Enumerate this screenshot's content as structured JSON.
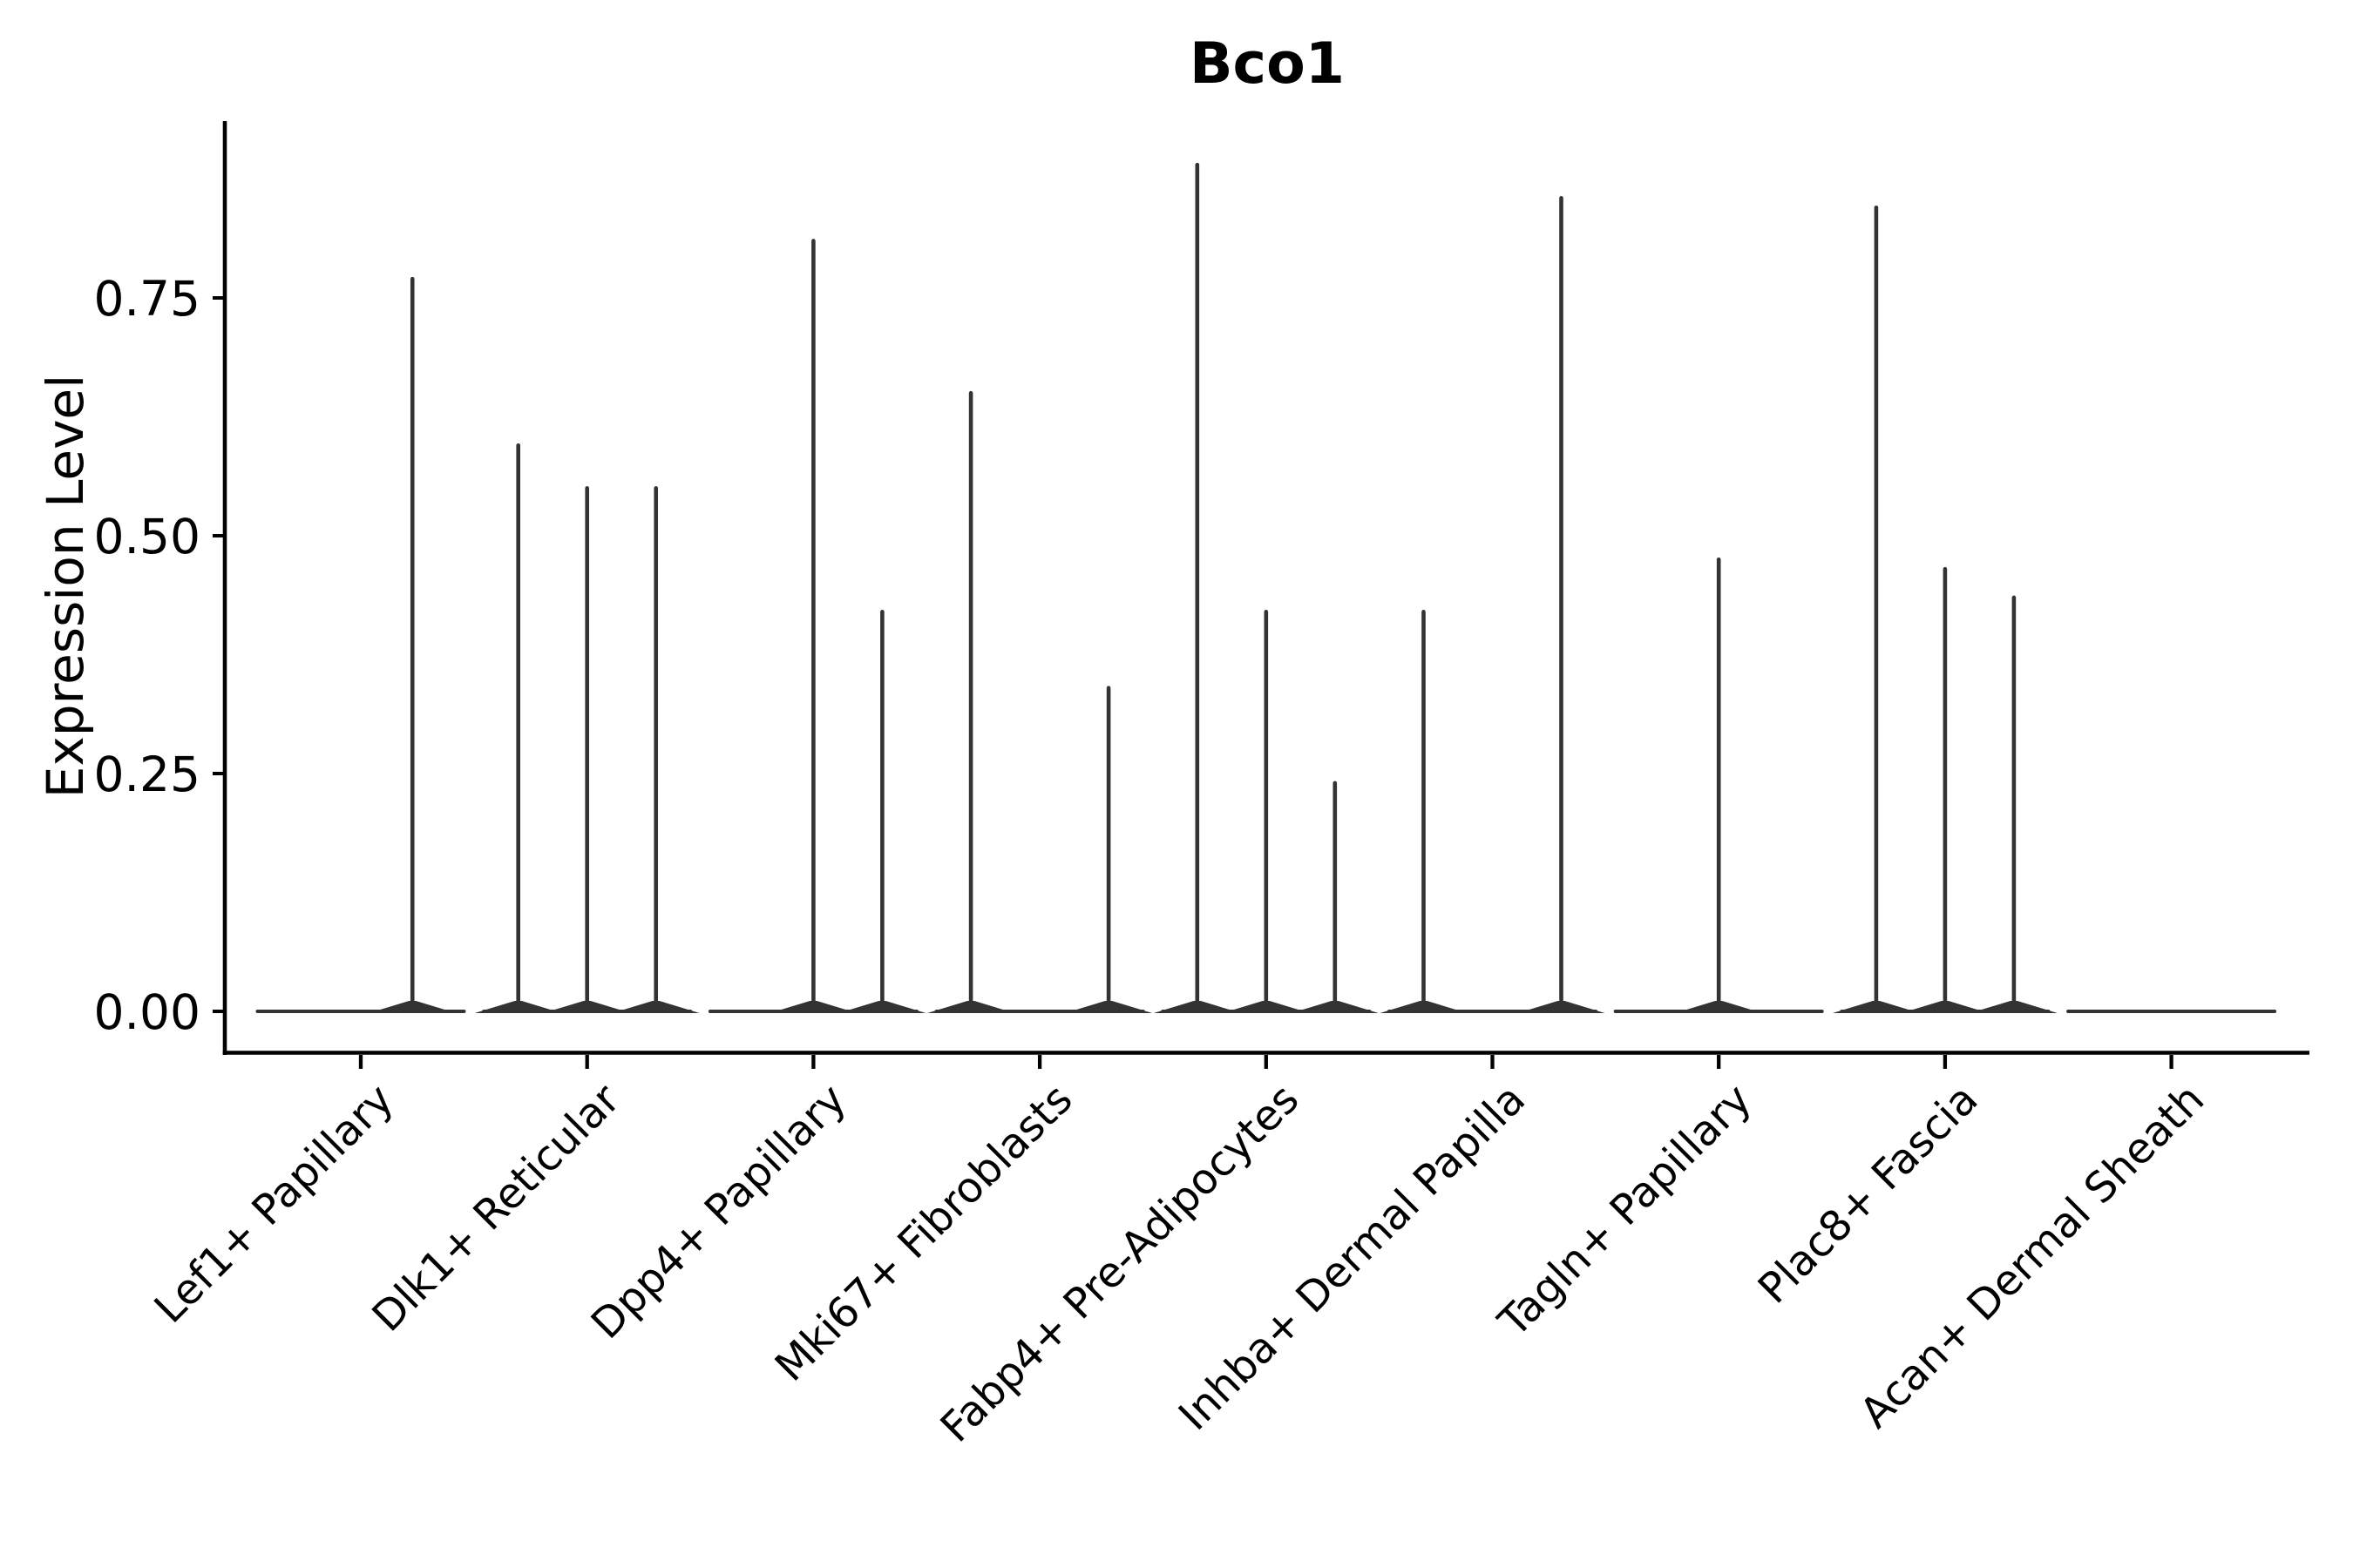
{
  "chart_data": {
    "type": "violin",
    "title": "Bco1",
    "ylabel": "Expression Level",
    "xlabel": "",
    "grid": false,
    "legend": "none",
    "ylim": [
      0,
      0.937
    ],
    "yticks": [
      {
        "value": 0.0,
        "label": "0.00"
      },
      {
        "value": 0.25,
        "label": "0.25"
      },
      {
        "value": 0.5,
        "label": "0.50"
      },
      {
        "value": 0.75,
        "label": "0.75"
      }
    ],
    "categories": [
      {
        "label": "Lef1+ Papillary",
        "violin_maxima": [
          0,
          0.77
        ]
      },
      {
        "label": "Dlk1+ Reticular",
        "violin_maxima": [
          0.595,
          0.55,
          0.55
        ]
      },
      {
        "label": "Dpp4+ Papillary",
        "violin_maxima": [
          0,
          0.81,
          0.42
        ]
      },
      {
        "label": "Mki67+ Fibroblasts",
        "violin_maxima": [
          0.65,
          0,
          0.34
        ]
      },
      {
        "label": "Fabp4+ Pre-Adipocytes",
        "violin_maxima": [
          0.89,
          0.42,
          0.24
        ]
      },
      {
        "label": "Inhba+ Dermal Papilla",
        "violin_maxima": [
          0.42,
          0,
          0.855
        ]
      },
      {
        "label": "Tagln+ Papillary",
        "violin_maxima": [
          0,
          0.475,
          0
        ]
      },
      {
        "label": "Plac8+ Fascia",
        "violin_maxima": [
          0.845,
          0.465,
          0.435
        ]
      },
      {
        "label": "Acan+ Dermal Sheath",
        "violin_maxima": [
          0
        ]
      }
    ],
    "colors": {
      "violin": "#333333",
      "axis": "#000000",
      "text": "#000000",
      "background": "#ffffff"
    }
  }
}
